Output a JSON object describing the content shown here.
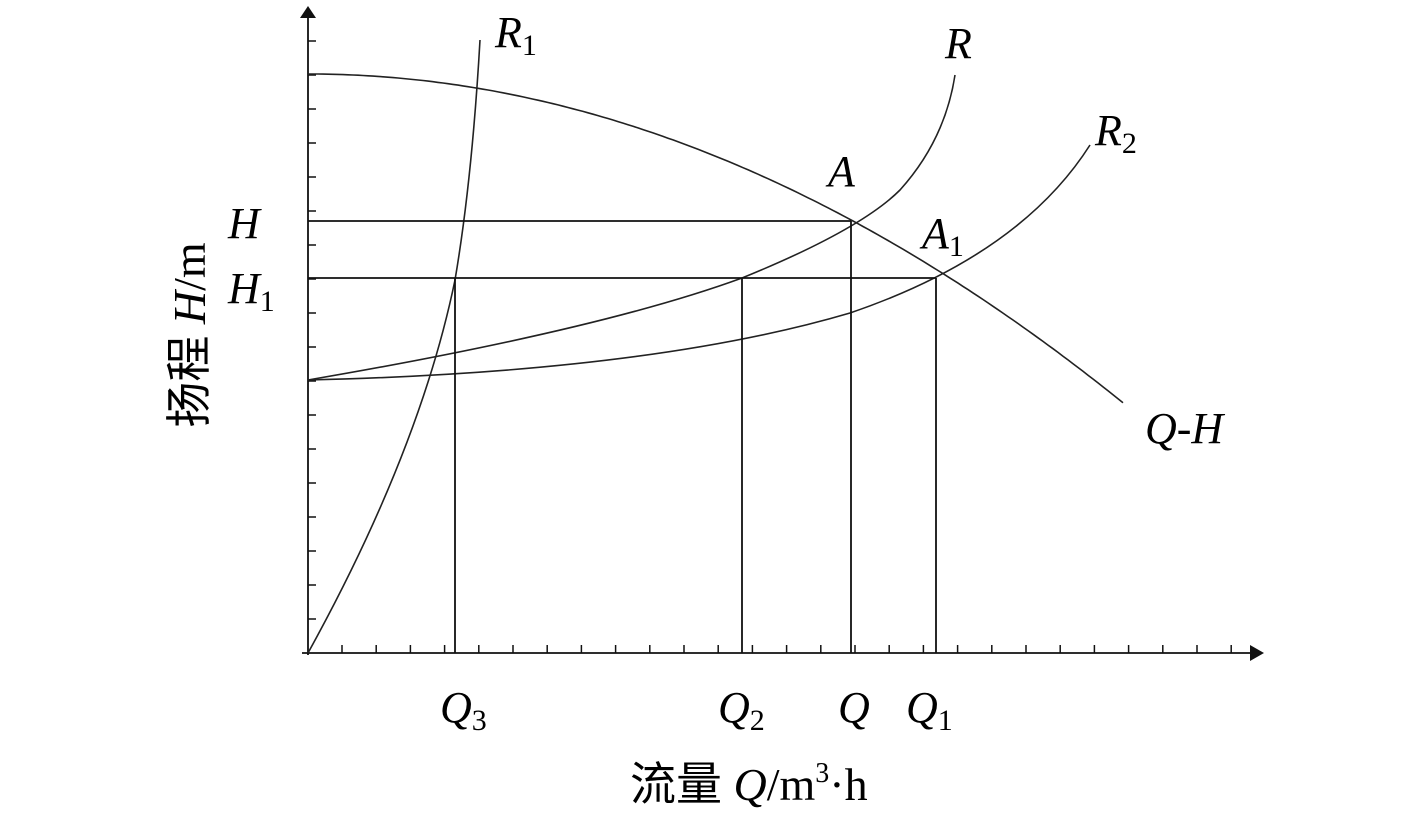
{
  "labels": {
    "r1": {
      "text": "R",
      "sub": "1"
    },
    "r": {
      "text": "R"
    },
    "r2": {
      "text": "R",
      "sub": "2"
    },
    "a": {
      "text": "A"
    },
    "a1": {
      "text": "A",
      "sub": "1"
    },
    "h": {
      "text": "H"
    },
    "h1": {
      "text": "H",
      "sub": "1"
    },
    "qh": {
      "text": "Q-H"
    },
    "q3": {
      "text": "Q",
      "sub": "3"
    },
    "q2": {
      "text": "Q",
      "sub": "2"
    },
    "q": {
      "text": "Q"
    },
    "q1": {
      "text": "Q",
      "sub": "1"
    }
  },
  "y_axis_title": {
    "prefix": "扬程 ",
    "symbol": "H",
    "unit": "/m"
  },
  "x_axis_title": {
    "prefix": "流量 ",
    "symbol": "Q",
    "unit": "/m",
    "sup": "3",
    "tail": "·h"
  }
}
